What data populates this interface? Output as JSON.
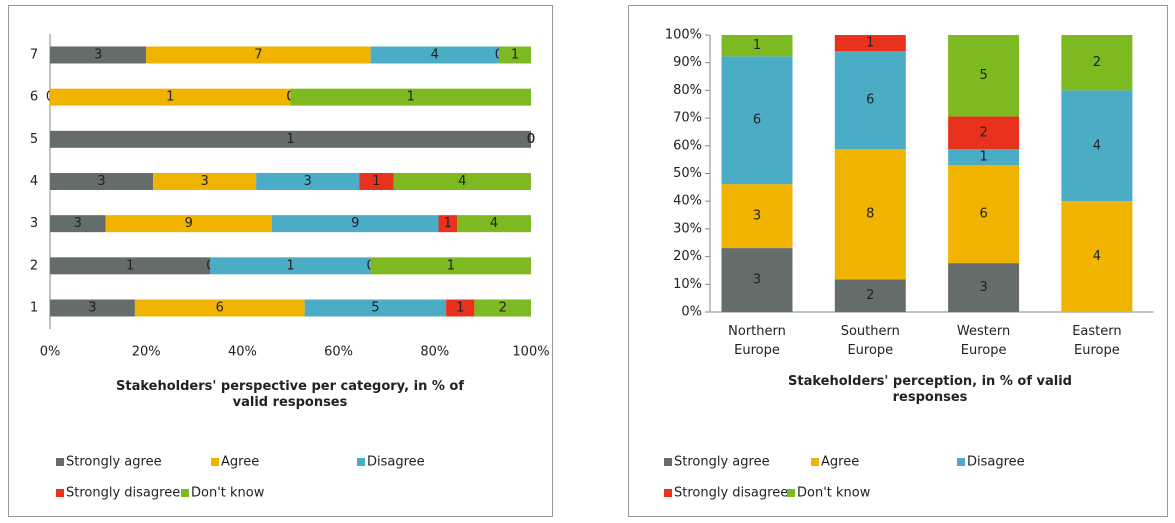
{
  "chart_data": [
    {
      "type": "bar",
      "orientation": "horizontal",
      "stacked": "percent",
      "title": "Stakeholders' perspective per category, in % of valid responses",
      "categories": [
        "1",
        "2",
        "3",
        "4",
        "5",
        "6",
        "7"
      ],
      "series": [
        {
          "name": "Strongly agree",
          "color": "#656d6c",
          "values": [
            3,
            1,
            3,
            3,
            1,
            0,
            3
          ]
        },
        {
          "name": "Agree",
          "color": "#f0b400",
          "values": [
            6,
            0,
            9,
            3,
            0,
            1,
            7
          ]
        },
        {
          "name": "Disagree",
          "color": "#4bacc6",
          "values": [
            5,
            1,
            9,
            3,
            0,
            0,
            4
          ]
        },
        {
          "name": "Strongly disagree",
          "color": "#e8321e",
          "values": [
            1,
            0,
            1,
            1,
            0,
            0,
            0
          ]
        },
        {
          "name": "Don't know",
          "color": "#7dba22",
          "values": [
            2,
            1,
            4,
            4,
            0,
            1,
            1
          ]
        }
      ],
      "xlim": [
        0,
        100
      ],
      "xticks": [
        {
          "value": 0,
          "label": "0%"
        },
        {
          "value": 20,
          "label": "20%"
        },
        {
          "value": 40,
          "label": "40%"
        },
        {
          "value": 60,
          "label": "60%"
        },
        {
          "value": 80,
          "label": "80%"
        },
        {
          "value": 100,
          "label": "100%"
        }
      ],
      "legend": "bottom"
    },
    {
      "type": "bar",
      "orientation": "vertical",
      "stacked": "percent",
      "title": "Stakeholders' perception, in % of valid responses",
      "categories": [
        "Northern Europe",
        "Southern Europe",
        "Western Europe",
        "Eastern Europe"
      ],
      "series": [
        {
          "name": "Strongly agree",
          "color": "#656d6c",
          "values": [
            3,
            2,
            3,
            null
          ]
        },
        {
          "name": "Agree",
          "color": "#f0b400",
          "values": [
            3,
            8,
            6,
            4
          ]
        },
        {
          "name": "Disagree",
          "color": "#4bacc6",
          "values": [
            6,
            6,
            1,
            4
          ]
        },
        {
          "name": "Strongly disagree",
          "color": "#e8321e",
          "values": [
            null,
            1,
            2,
            null
          ]
        },
        {
          "name": "Don't know",
          "color": "#7dba22",
          "values": [
            1,
            null,
            5,
            2
          ]
        }
      ],
      "ylim": [
        0,
        100
      ],
      "yticks": [
        {
          "value": 0,
          "label": "0%"
        },
        {
          "value": 10,
          "label": "10%"
        },
        {
          "value": 20,
          "label": "20%"
        },
        {
          "value": 30,
          "label": "30%"
        },
        {
          "value": 40,
          "label": "40%"
        },
        {
          "value": 50,
          "label": "50%"
        },
        {
          "value": 60,
          "label": "60%"
        },
        {
          "value": 70,
          "label": "70%"
        },
        {
          "value": 80,
          "label": "80%"
        },
        {
          "value": 90,
          "label": "90%"
        },
        {
          "value": 100,
          "label": "100%"
        }
      ],
      "legend": "bottom"
    }
  ]
}
